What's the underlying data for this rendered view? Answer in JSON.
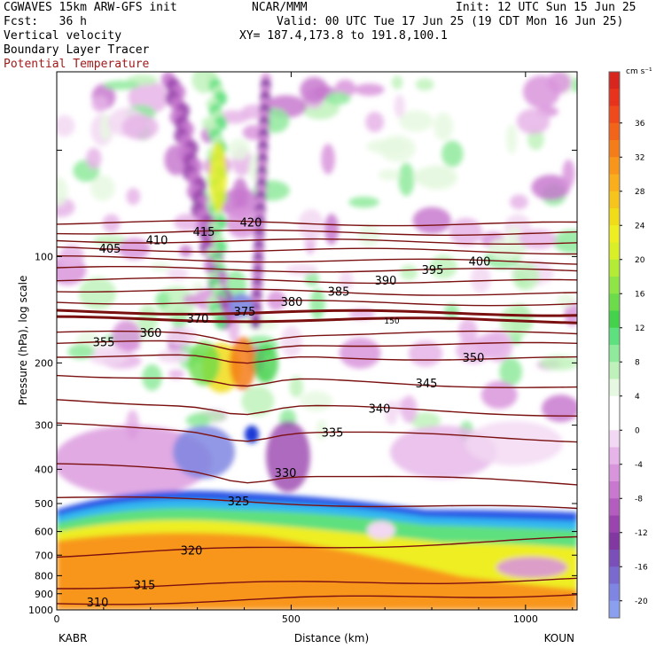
{
  "header": {
    "model": "CGWAVES 15km ARW-GFS init",
    "org": "NCAR/MMM",
    "init": "Init: 12 UTC Sun 15 Jun 25",
    "fcst": "Fcst:   36 h",
    "valid": "Valid: 00 UTC Tue 17 Jun 25 (19 CDT Mon 16 Jun 25)",
    "field1": "Vertical velocity",
    "field2": "Boundary Layer Tracer",
    "field3": "Potential Temperature",
    "xy": "XY= 187.4,173.8 to 191.8,100.1",
    "field3_color": "#a01a1a"
  },
  "chart_data": {
    "type": "heatmap",
    "xlabel": "Distance (km)",
    "ylabel": "Pressure (hPa), log scale",
    "x_ticks": [
      0,
      500,
      1000
    ],
    "x_range": [
      0,
      1110
    ],
    "y_ticks": [
      100,
      200,
      300,
      400,
      500,
      600,
      700,
      800,
      900,
      1000
    ],
    "y_range": [
      1000,
      30
    ],
    "y_scale": "log",
    "left_endpoint": "KABR",
    "right_endpoint": "KOUN",
    "colorbar": {
      "units": "cm s⁻¹",
      "labels": [
        "36",
        "32",
        "28",
        "24",
        "20",
        "16",
        "12",
        "8",
        "4",
        "0",
        "-4",
        "-8",
        "-12",
        "-16",
        "-20"
      ],
      "colors": [
        "#d7261e",
        "#e8331c",
        "#ef4a1c",
        "#f26419",
        "#f57d19",
        "#f8961b",
        "#f9ae1e",
        "#f6c51d",
        "#f1dc1a",
        "#eeee22",
        "#d9ef28",
        "#b4eb37",
        "#8fe446",
        "#6cdc4a",
        "#44d24c",
        "#5ee07e",
        "#8fea9c",
        "#bff2bb",
        "#e6f8e1",
        "#ffffff",
        "#ffffff",
        "#f2d8f2",
        "#e6b4e8",
        "#d995dc",
        "#c879cf",
        "#b35dbf",
        "#9a45ae",
        "#8138a1",
        "#7a4fb7",
        "#7b6ace",
        "#7f86e2",
        "#8aa0ef"
      ]
    },
    "isentropes": {
      "units": "K",
      "labels_visible": [
        "310",
        "315",
        "320",
        "325",
        "330",
        "335",
        "340",
        "345",
        "350",
        "355",
        "360",
        "370",
        "375",
        "380",
        "385",
        "390",
        "395",
        "400",
        "405",
        "410",
        "415",
        "420"
      ],
      "line_color": "#7a1010",
      "tropopause_label": "150"
    }
  }
}
